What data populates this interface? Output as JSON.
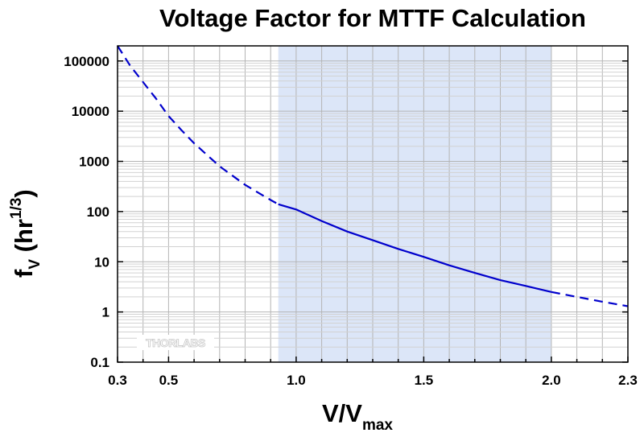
{
  "chart_data": {
    "type": "line",
    "title": "Voltage Factor for MTTF Calculation",
    "xlabel": "V/V",
    "xlabel_sub": "max",
    "ylabel": "f",
    "ylabel_sub": "V",
    "ylabel_unit_open": " (hr",
    "ylabel_unit_sup": "1/3",
    "ylabel_unit_close": ")",
    "xlim": [
      0.3,
      2.3
    ],
    "ylim": [
      0.1,
      200000
    ],
    "yscale": "log",
    "grid": true,
    "x_ticks": [
      {
        "value": 0.3,
        "label": "0.3"
      },
      {
        "value": 0.5,
        "label": "0.5"
      },
      {
        "value": 1.0,
        "label": "1.0"
      },
      {
        "value": 1.5,
        "label": "1.5"
      },
      {
        "value": 2.0,
        "label": "2.0"
      },
      {
        "value": 2.3,
        "label": "2.3"
      }
    ],
    "y_ticks": [
      {
        "value": 0.1,
        "label": "0.1"
      },
      {
        "value": 1,
        "label": "1"
      },
      {
        "value": 10,
        "label": "10"
      },
      {
        "value": 100,
        "label": "100"
      },
      {
        "value": 1000,
        "label": "1000"
      },
      {
        "value": 10000,
        "label": "10000"
      },
      {
        "value": 100000,
        "label": "100000"
      }
    ],
    "shaded_region": {
      "x": [
        0.93,
        2.0
      ],
      "color": "#dce6f8"
    },
    "series": [
      {
        "style": "dashed",
        "color": "#0000cc",
        "points": [
          [
            0.3,
            200000
          ],
          [
            0.35,
            80000
          ],
          [
            0.4,
            38000
          ],
          [
            0.45,
            18000
          ],
          [
            0.5,
            8000
          ],
          [
            0.55,
            4200
          ],
          [
            0.6,
            2300
          ],
          [
            0.65,
            1350
          ],
          [
            0.7,
            800
          ],
          [
            0.75,
            520
          ],
          [
            0.8,
            340
          ],
          [
            0.85,
            240
          ],
          [
            0.9,
            170
          ],
          [
            0.93,
            140
          ]
        ]
      },
      {
        "style": "solid",
        "color": "#0000cc",
        "points": [
          [
            0.93,
            140
          ],
          [
            1.0,
            110
          ],
          [
            1.1,
            65
          ],
          [
            1.2,
            40
          ],
          [
            1.3,
            27
          ],
          [
            1.4,
            18
          ],
          [
            1.5,
            12.5
          ],
          [
            1.6,
            8.5
          ],
          [
            1.7,
            6.0
          ],
          [
            1.8,
            4.3
          ],
          [
            1.9,
            3.3
          ],
          [
            2.0,
            2.5
          ]
        ]
      },
      {
        "style": "dashed",
        "color": "#0000cc",
        "points": [
          [
            2.0,
            2.5
          ],
          [
            2.1,
            2.0
          ],
          [
            2.2,
            1.6
          ],
          [
            2.3,
            1.3
          ]
        ]
      }
    ]
  },
  "colors": {
    "curve": "#0000cc",
    "shade": "#dce6f8",
    "grid_major": "#b4b4b4",
    "grid_minor": "#d2d2d2"
  },
  "watermark": {
    "text": "THORLABS"
  }
}
